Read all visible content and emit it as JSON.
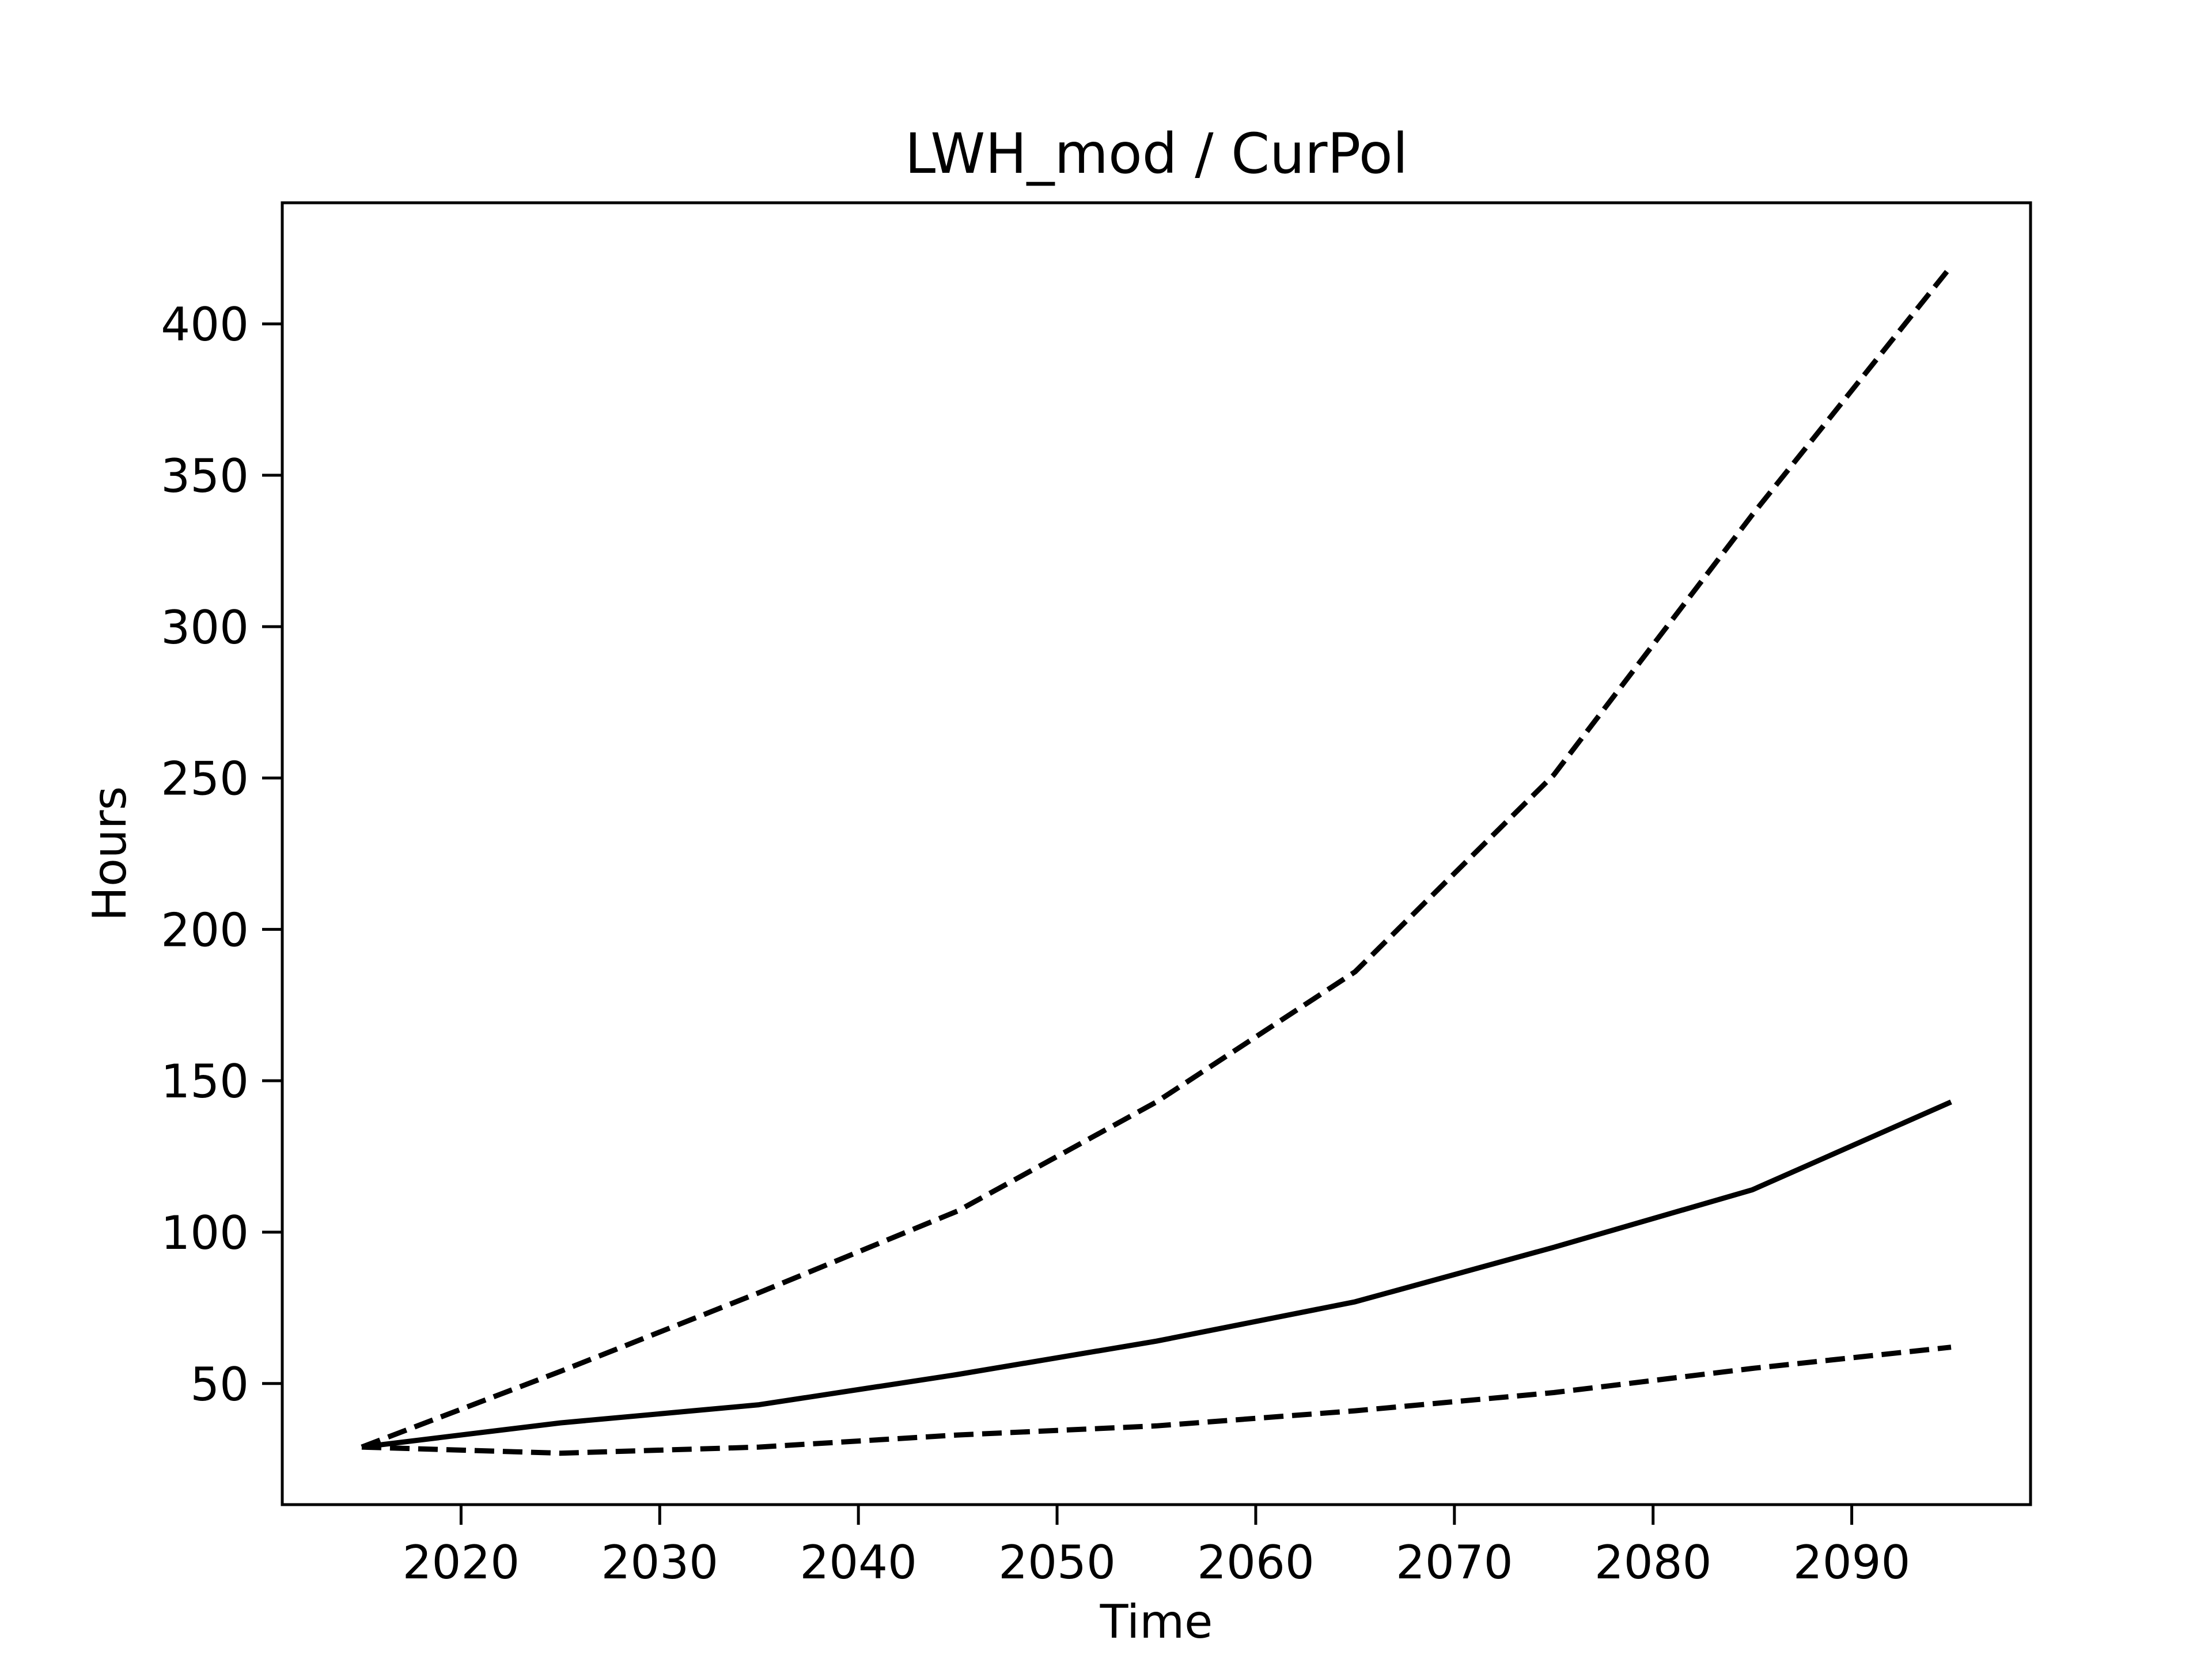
{
  "chart_data": {
    "type": "line",
    "title": "LWH_mod / CurPol",
    "xlabel": "Time",
    "ylabel": "Hours",
    "xlim": [
      2011,
      2099
    ],
    "ylim": [
      10,
      440
    ],
    "xticks": [
      2020,
      2030,
      2040,
      2050,
      2060,
      2070,
      2080,
      2090
    ],
    "yticks": [
      50,
      100,
      150,
      200,
      250,
      300,
      350,
      400
    ],
    "grid": false,
    "legend": "none",
    "x": [
      2015,
      2025,
      2035,
      2045,
      2055,
      2065,
      2075,
      2085,
      2095
    ],
    "series": [
      {
        "style": "solid",
        "color": "#000000",
        "values": [
          29,
          37,
          43,
          53,
          64,
          77,
          95,
          114,
          143
        ]
      },
      {
        "style": "dashed",
        "color": "#000000",
        "values": [
          29,
          54,
          80,
          107,
          143,
          186,
          251,
          337,
          419
        ]
      },
      {
        "style": "dashed",
        "color": "#000000",
        "values": [
          29,
          27,
          29,
          33,
          36,
          41,
          47,
          55,
          62
        ]
      }
    ]
  }
}
